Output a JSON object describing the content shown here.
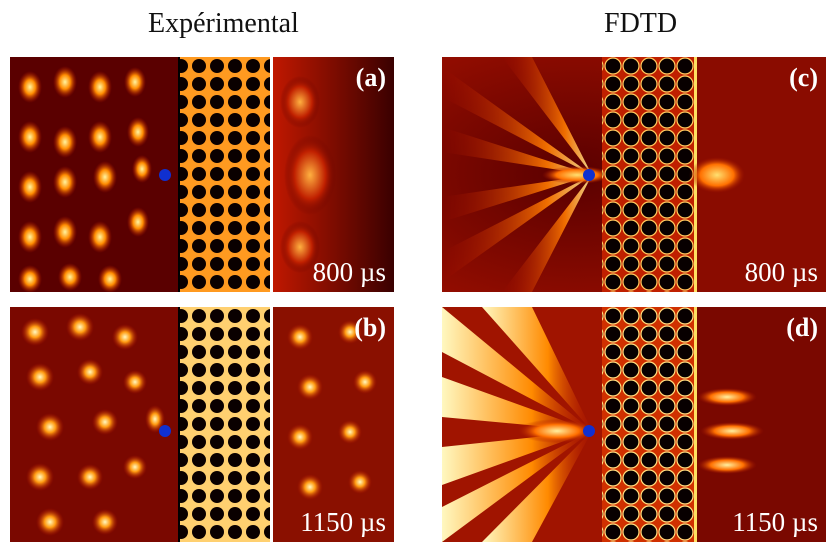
{
  "columns": {
    "left_title": "Expérimental",
    "right_title": "FDTD"
  },
  "panels": [
    {
      "id": "a",
      "label": "(a)",
      "time": "800 µs",
      "kind": "experimental"
    },
    {
      "id": "b",
      "label": "(b)",
      "time": "1150 µs",
      "kind": "experimental"
    },
    {
      "id": "c",
      "label": "(c)",
      "time": "800 µs",
      "kind": "fdtd"
    },
    {
      "id": "d",
      "label": "(d)",
      "time": "1150 µs",
      "kind": "fdtd"
    }
  ],
  "colors": {
    "background_dark": "#1a0000",
    "field_red": "#b01000",
    "field_orange": "#ff7a00",
    "field_yellow": "#ffe060",
    "source_dot": "#1030d0"
  }
}
